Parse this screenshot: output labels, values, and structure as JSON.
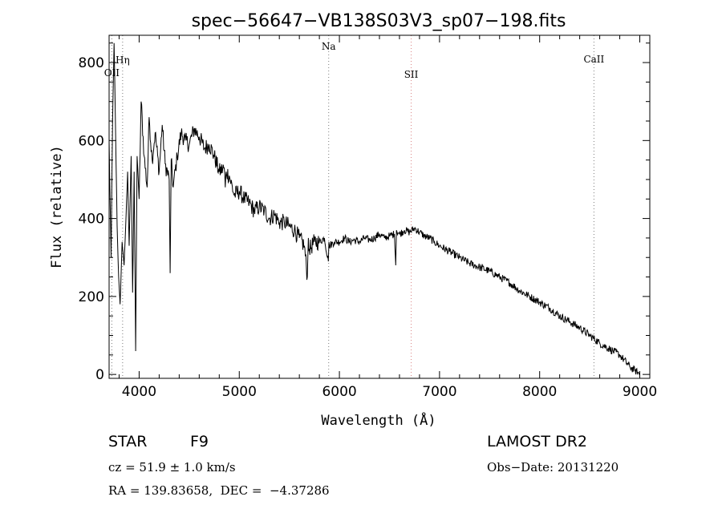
{
  "chart_data": {
    "type": "line",
    "title": "spec−56647−VB138S03V3_sp07−198.fits",
    "xlabel": "Wavelength (Å)",
    "ylabel": "Flux (relative)",
    "xlim": [
      3700,
      9100
    ],
    "ylim": [
      -10,
      870
    ],
    "x_ticks": [
      4000,
      5000,
      6000,
      7000,
      8000,
      9000
    ],
    "y_ticks": [
      0,
      200,
      400,
      600,
      800
    ],
    "grid": false,
    "line_color": "#000000",
    "spectral_lines": [
      {
        "label": "OII",
        "wavelength": 3727,
        "color": "#7a7a7a"
      },
      {
        "label": "Hη",
        "wavelength": 3835,
        "color": "#7a7a7a"
      },
      {
        "label": "Na",
        "wavelength": 5893,
        "color": "#7a7a7a"
      },
      {
        "label": "SII",
        "wavelength": 6717,
        "color": "#d98080"
      },
      {
        "label": "CaII",
        "wavelength": 8542,
        "color": "#7a7a7a"
      }
    ],
    "series": [
      {
        "x": [
          3700,
          3720,
          3735,
          3750,
          3765,
          3780,
          3795,
          3810,
          3830,
          3850,
          3870,
          3885,
          3900,
          3920,
          3935,
          3950,
          3965,
          3980,
          4000,
          4020,
          4050,
          4080,
          4100,
          4130,
          4160,
          4200,
          4230,
          4260,
          4300,
          4310,
          4320,
          4340,
          4380,
          4420,
          4460,
          4500,
          4550,
          4600,
          4650,
          4700,
          4750,
          4800,
          4850,
          4860,
          4870,
          4900,
          4950,
          5000,
          5050,
          5100,
          5150,
          5200,
          5250,
          5300,
          5350,
          5400,
          5450,
          5500,
          5550,
          5600,
          5650,
          5680,
          5690,
          5700,
          5750,
          5800,
          5850,
          5890,
          5895,
          5900,
          5950,
          6000,
          6050,
          6100,
          6150,
          6200,
          6250,
          6300,
          6350,
          6400,
          6450,
          6500,
          6550,
          6563,
          6570,
          6600,
          6650,
          6700,
          6750,
          6800,
          6850,
          6900,
          6950,
          7000,
          7100,
          7200,
          7300,
          7400,
          7500,
          7600,
          7700,
          7800,
          7900,
          8000,
          8100,
          8200,
          8300,
          8400,
          8500,
          8600,
          8700,
          8800,
          8900,
          8950,
          9000
        ],
        "y": [
          600,
          300,
          660,
          850,
          620,
          380,
          250,
          180,
          340,
          280,
          410,
          520,
          330,
          560,
          210,
          520,
          60,
          560,
          450,
          700,
          560,
          480,
          660,
          550,
          620,
          520,
          640,
          540,
          500,
          260,
          550,
          480,
          560,
          620,
          600,
          590,
          630,
          610,
          580,
          590,
          560,
          520,
          530,
          480,
          520,
          510,
          460,
          470,
          450,
          440,
          420,
          430,
          420,
          400,
          410,
          390,
          390,
          380,
          370,
          350,
          330,
          250,
          350,
          320,
          340,
          340,
          350,
          290,
          340,
          330,
          340,
          340,
          350,
          340,
          345,
          340,
          350,
          345,
          350,
          360,
          350,
          355,
          360,
          280,
          370,
          360,
          370,
          365,
          375,
          365,
          355,
          350,
          340,
          330,
          315,
          300,
          285,
          275,
          265,
          250,
          235,
          215,
          200,
          185,
          170,
          150,
          135,
          120,
          100,
          80,
          65,
          50,
          20,
          10,
          0
        ]
      }
    ]
  },
  "info": {
    "object_type": "STAR",
    "subclass": "F9",
    "survey": "LAMOST DR2",
    "redshift": "cz = 51.9 ± 1.0 km/s",
    "obs_date": "Obs−Date: 20131220",
    "coords": "RA = 139.83658,  DEC =  −4.37286"
  }
}
